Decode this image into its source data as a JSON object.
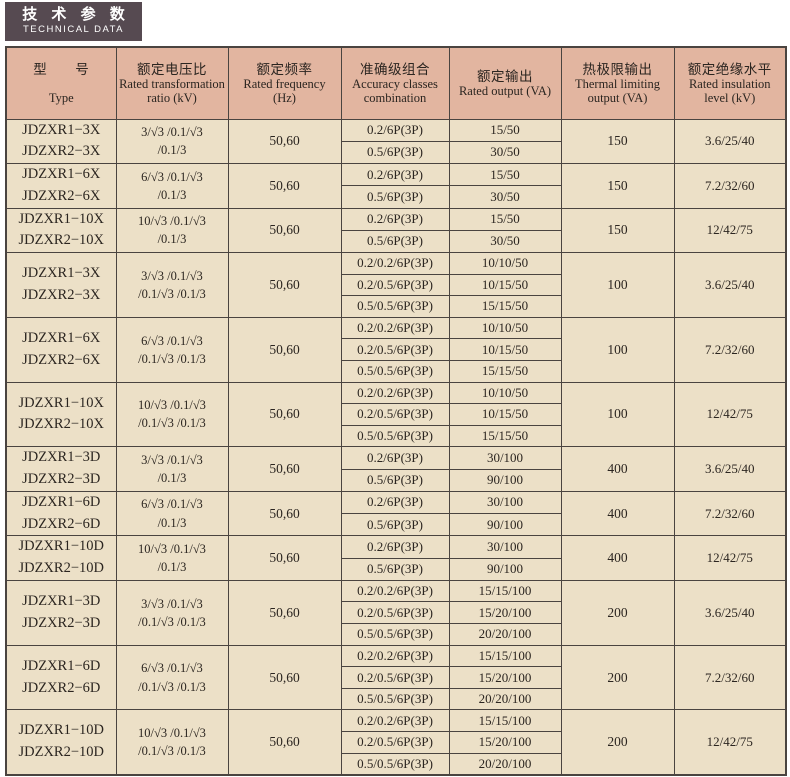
{
  "page": {
    "title_zh": "技 术 参 数",
    "title_en": "TECHNICAL DATA"
  },
  "colors": {
    "title_bg": "#564a51",
    "header_bg": "#e2b5a0",
    "body_bg": "#ece0c7",
    "border": "#4a4440"
  },
  "table": {
    "columns": [
      {
        "zh": "型　　号",
        "en": "Type"
      },
      {
        "zh": "额定电压比",
        "en": "Rated transformation ratio (kV)"
      },
      {
        "zh": "额定频率",
        "en": "Rated frequency (Hz)"
      },
      {
        "zh": "准确级组合",
        "en": "Accuracy classes combination"
      },
      {
        "zh": "额定输出",
        "en": "Rated output (VA)"
      },
      {
        "zh": "热极限输出",
        "en": "Thermal limiting output (VA)"
      },
      {
        "zh": "额定绝缘水平",
        "en": "Rated insulation level (kV)"
      }
    ],
    "groups": [
      {
        "type": [
          "JDZXR1−3X",
          "JDZXR2−3X"
        ],
        "ratio": [
          "3/√3 /0.1/√3",
          "/0.1/3"
        ],
        "frequency": "50,60",
        "rows": [
          {
            "accuracy": "0.2/6P(3P)",
            "output": "15/50"
          },
          {
            "accuracy": "0.5/6P(3P)",
            "output": "30/50"
          }
        ],
        "thermal": "150",
        "insulation": "3.6/25/40"
      },
      {
        "type": [
          "JDZXR1−6X",
          "JDZXR2−6X"
        ],
        "ratio": [
          "6/√3 /0.1/√3",
          "/0.1/3"
        ],
        "frequency": "50,60",
        "rows": [
          {
            "accuracy": "0.2/6P(3P)",
            "output": "15/50"
          },
          {
            "accuracy": "0.5/6P(3P)",
            "output": "30/50"
          }
        ],
        "thermal": "150",
        "insulation": "7.2/32/60"
      },
      {
        "type": [
          "JDZXR1−10X",
          "JDZXR2−10X"
        ],
        "ratio": [
          "10/√3 /0.1/√3",
          "/0.1/3"
        ],
        "frequency": "50,60",
        "rows": [
          {
            "accuracy": "0.2/6P(3P)",
            "output": "15/50"
          },
          {
            "accuracy": "0.5/6P(3P)",
            "output": "30/50"
          }
        ],
        "thermal": "150",
        "insulation": "12/42/75"
      },
      {
        "type": [
          "JDZXR1−3X",
          "JDZXR2−3X"
        ],
        "ratio": [
          "3/√3 /0.1/√3",
          "/0.1/√3 /0.1/3"
        ],
        "frequency": "50,60",
        "rows": [
          {
            "accuracy": "0.2/0.2/6P(3P)",
            "output": "10/10/50"
          },
          {
            "accuracy": "0.2/0.5/6P(3P)",
            "output": "10/15/50"
          },
          {
            "accuracy": "0.5/0.5/6P(3P)",
            "output": "15/15/50"
          }
        ],
        "thermal": "100",
        "insulation": "3.6/25/40"
      },
      {
        "type": [
          "JDZXR1−6X",
          "JDZXR2−6X"
        ],
        "ratio": [
          "6/√3 /0.1/√3",
          "/0.1/√3 /0.1/3"
        ],
        "frequency": "50,60",
        "rows": [
          {
            "accuracy": "0.2/0.2/6P(3P)",
            "output": "10/10/50"
          },
          {
            "accuracy": "0.2/0.5/6P(3P)",
            "output": "10/15/50"
          },
          {
            "accuracy": "0.5/0.5/6P(3P)",
            "output": "15/15/50"
          }
        ],
        "thermal": "100",
        "insulation": "7.2/32/60"
      },
      {
        "type": [
          "JDZXR1−10X",
          "JDZXR2−10X"
        ],
        "ratio": [
          "10/√3 /0.1/√3",
          "/0.1/√3 /0.1/3"
        ],
        "frequency": "50,60",
        "rows": [
          {
            "accuracy": "0.2/0.2/6P(3P)",
            "output": "10/10/50"
          },
          {
            "accuracy": "0.2/0.5/6P(3P)",
            "output": "10/15/50"
          },
          {
            "accuracy": "0.5/0.5/6P(3P)",
            "output": "15/15/50"
          }
        ],
        "thermal": "100",
        "insulation": "12/42/75"
      },
      {
        "type": [
          "JDZXR1−3D",
          "JDZXR2−3D"
        ],
        "ratio": [
          "3/√3 /0.1/√3",
          "/0.1/3"
        ],
        "frequency": "50,60",
        "rows": [
          {
            "accuracy": "0.2/6P(3P)",
            "output": "30/100"
          },
          {
            "accuracy": "0.5/6P(3P)",
            "output": "90/100"
          }
        ],
        "thermal": "400",
        "insulation": "3.6/25/40"
      },
      {
        "type": [
          "JDZXR1−6D",
          "JDZXR2−6D"
        ],
        "ratio": [
          "6/√3 /0.1/√3",
          "/0.1/3"
        ],
        "frequency": "50,60",
        "rows": [
          {
            "accuracy": "0.2/6P(3P)",
            "output": "30/100"
          },
          {
            "accuracy": "0.5/6P(3P)",
            "output": "90/100"
          }
        ],
        "thermal": "400",
        "insulation": "7.2/32/60"
      },
      {
        "type": [
          "JDZXR1−10D",
          "JDZXR2−10D"
        ],
        "ratio": [
          "10/√3 /0.1/√3",
          "/0.1/3"
        ],
        "frequency": "50,60",
        "rows": [
          {
            "accuracy": "0.2/6P(3P)",
            "output": "30/100"
          },
          {
            "accuracy": "0.5/6P(3P)",
            "output": "90/100"
          }
        ],
        "thermal": "400",
        "insulation": "12/42/75"
      },
      {
        "type": [
          "JDZXR1−3D",
          "JDZXR2−3D"
        ],
        "ratio": [
          "3/√3 /0.1/√3",
          "/0.1/√3 /0.1/3"
        ],
        "frequency": "50,60",
        "rows": [
          {
            "accuracy": "0.2/0.2/6P(3P)",
            "output": "15/15/100"
          },
          {
            "accuracy": "0.2/0.5/6P(3P)",
            "output": "15/20/100"
          },
          {
            "accuracy": "0.5/0.5/6P(3P)",
            "output": "20/20/100"
          }
        ],
        "thermal": "200",
        "insulation": "3.6/25/40"
      },
      {
        "type": [
          "JDZXR1−6D",
          "JDZXR2−6D"
        ],
        "ratio": [
          "6/√3 /0.1/√3",
          "/0.1/√3 /0.1/3"
        ],
        "frequency": "50,60",
        "rows": [
          {
            "accuracy": "0.2/0.2/6P(3P)",
            "output": "15/15/100"
          },
          {
            "accuracy": "0.2/0.5/6P(3P)",
            "output": "15/20/100"
          },
          {
            "accuracy": "0.5/0.5/6P(3P)",
            "output": "20/20/100"
          }
        ],
        "thermal": "200",
        "insulation": "7.2/32/60"
      },
      {
        "type": [
          "JDZXR1−10D",
          "JDZXR2−10D"
        ],
        "ratio": [
          "10/√3 /0.1/√3",
          "/0.1/√3 /0.1/3"
        ],
        "frequency": "50,60",
        "rows": [
          {
            "accuracy": "0.2/0.2/6P(3P)",
            "output": "15/15/100"
          },
          {
            "accuracy": "0.2/0.5/6P(3P)",
            "output": "15/20/100"
          },
          {
            "accuracy": "0.5/0.5/6P(3P)",
            "output": "20/20/100"
          }
        ],
        "thermal": "200",
        "insulation": "12/42/75"
      }
    ]
  }
}
